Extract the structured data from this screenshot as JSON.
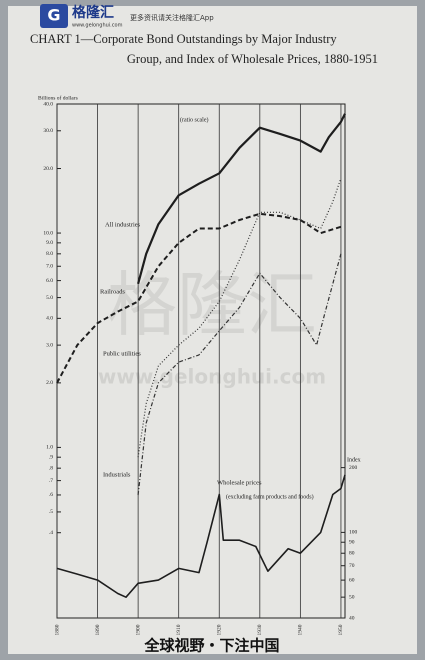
{
  "header": {
    "logo": "格隆汇",
    "logo_sub": "www.gelonghui.com",
    "slogan": "更多资讯请关注格隆汇App"
  },
  "footer": "全球视野・下注中国",
  "watermark": {
    "text": "格隆汇",
    "url": "www.gelonghui.com"
  },
  "chart_data": {
    "type": "line",
    "title_lines": [
      "CHART 1—Corporate Bond Outstandings by Major Industry",
      "Group, and Index of Wholesale Prices, 1880-1951"
    ],
    "y_label": "Billions of dollars",
    "y2_label": "Index",
    "scale_note": "(ratio scale)",
    "wholesale_note": "(excluding farm products and foods)",
    "xlim": [
      1880,
      1951
    ],
    "xticks": [
      1880,
      1890,
      1900,
      1910,
      1920,
      1930,
      1940,
      1950
    ],
    "ylim": [
      0.16,
      40
    ],
    "y_scale": "log",
    "y2lim": [
      40,
      9800
    ],
    "y2_scale": "log",
    "grid": "x",
    "yticks": [
      {
        "value": 40,
        "label": "40.0"
      },
      {
        "value": 30,
        "label": "30.0"
      },
      {
        "value": 20,
        "label": "20.0"
      },
      {
        "value": 10,
        "label": "10.0"
      },
      {
        "value": 9,
        "label": "9.0"
      },
      {
        "value": 8,
        "label": "8.0"
      },
      {
        "value": 7,
        "label": "7.0"
      },
      {
        "value": 6,
        "label": "6.0"
      },
      {
        "value": 5,
        "label": "5.0"
      },
      {
        "value": 4,
        "label": "4.0"
      },
      {
        "value": 3,
        "label": "3.0"
      },
      {
        "value": 2,
        "label": "2.0"
      },
      {
        "value": 1,
        "label": "1.0"
      },
      {
        "value": 0.9,
        "label": ".9"
      },
      {
        "value": 0.8,
        "label": ".8"
      },
      {
        "value": 0.7,
        "label": ".7"
      },
      {
        "value": 0.6,
        "label": ".6"
      },
      {
        "value": 0.5,
        "label": ".5"
      },
      {
        "value": 0.4,
        "label": ".4"
      }
    ],
    "y2ticks": [
      200,
      100,
      90,
      80,
      70,
      60,
      50,
      40
    ],
    "series": [
      {
        "name": "All industries",
        "color": "#1e1e1e",
        "style": "solid",
        "x": [
          1900,
          1902,
          1905,
          1910,
          1915,
          1920,
          1925,
          1930,
          1935,
          1940,
          1945,
          1947,
          1950,
          1951
        ],
        "values": [
          5.8,
          8,
          11,
          15,
          17,
          19,
          25,
          31,
          29,
          27,
          24,
          28,
          33,
          36
        ]
      },
      {
        "name": "Railroads",
        "color": "#1e1e1e",
        "style": "dashed",
        "x": [
          1880,
          1885,
          1890,
          1895,
          1900,
          1905,
          1910,
          1915,
          1920,
          1925,
          1930,
          1935,
          1940,
          1945,
          1950
        ],
        "values": [
          2.0,
          3.0,
          3.8,
          4.3,
          4.8,
          7,
          9,
          10.5,
          10.5,
          11.5,
          12.3,
          12,
          11.5,
          10,
          10.7
        ]
      },
      {
        "name": "Public utilities",
        "color": "#333333",
        "style": "dotted",
        "x": [
          1900,
          1902,
          1905,
          1910,
          1915,
          1920,
          1925,
          1930,
          1935,
          1940,
          1945,
          1948,
          1950
        ],
        "values": [
          0.9,
          1.6,
          2.4,
          3,
          3.6,
          4.8,
          7.5,
          12.5,
          12.5,
          11.5,
          10.5,
          14,
          18
        ]
      },
      {
        "name": "Industrials",
        "color": "#333333",
        "style": "dashdot",
        "x": [
          1900,
          1902,
          1905,
          1910,
          1915,
          1920,
          1925,
          1930,
          1935,
          1940,
          1944,
          1946,
          1950
        ],
        "values": [
          0.6,
          1.3,
          2,
          2.5,
          2.7,
          3.5,
          4.5,
          6.5,
          5,
          4,
          3,
          4.2,
          8
        ]
      },
      {
        "name": "Wholesale prices",
        "color": "#1e1e1e",
        "style": "solid",
        "axis": "y2",
        "x": [
          1880,
          1885,
          1890,
          1895,
          1897,
          1900,
          1905,
          1910,
          1915,
          1917,
          1920,
          1921,
          1925,
          1929,
          1932,
          1937,
          1940,
          1945,
          1948,
          1950,
          1951
        ],
        "values": [
          68,
          64,
          60,
          52,
          50,
          58,
          60,
          68,
          65,
          90,
          150,
          92,
          92,
          86,
          66,
          84,
          80,
          100,
          150,
          160,
          185
        ]
      }
    ]
  }
}
